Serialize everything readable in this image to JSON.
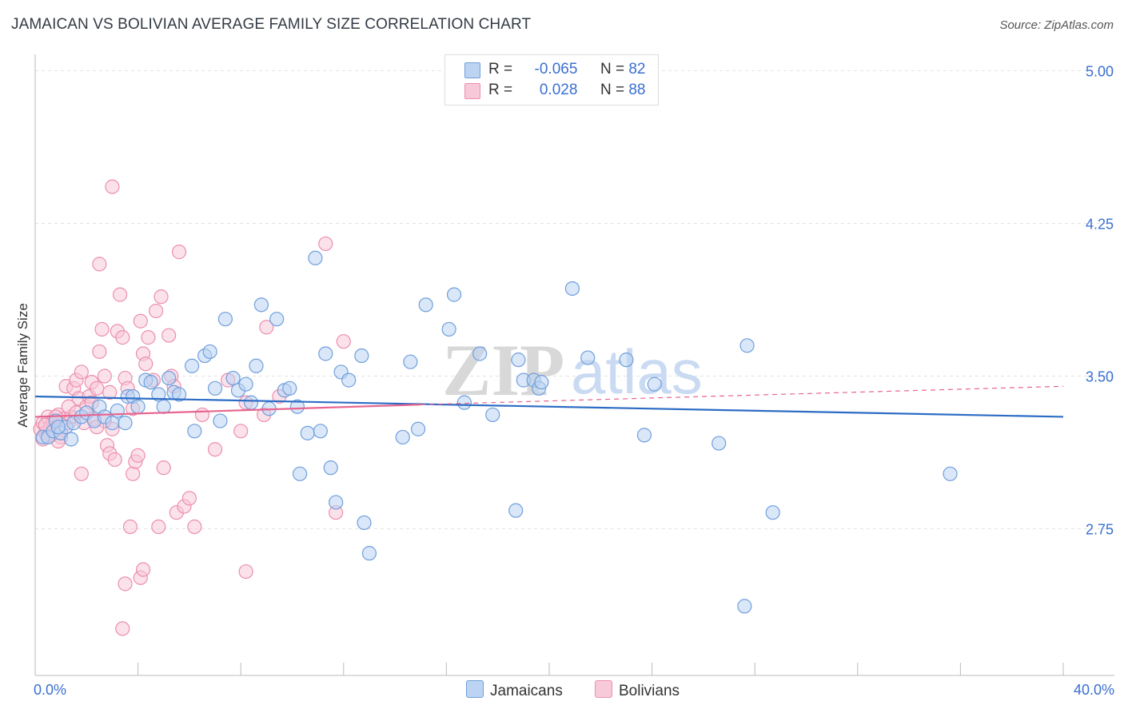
{
  "title": "JAMAICAN VS BOLIVIAN AVERAGE FAMILY SIZE CORRELATION CHART",
  "source": "Source: ZipAtlas.com",
  "watermark": {
    "zip": "ZIP",
    "atlas": "atlas"
  },
  "legend": {
    "rows": [
      {
        "r_label": "R =",
        "r_value": "-0.065",
        "n_label": "N =",
        "n_value": "82"
      },
      {
        "r_label": "R =",
        "r_value": "0.028",
        "n_label": "N =",
        "n_value": "88"
      }
    ]
  },
  "bottom_legend": {
    "jamaicans": "Jamaicans",
    "bolivians": "Bolivians"
  },
  "colors": {
    "blue_fill": "#bcd4f2",
    "blue_stroke": "#6f9fdc",
    "blue_line": "#2d6cc4",
    "pink_fill": "#f8c9d8",
    "pink_stroke": "#ec8fad",
    "pink_line": "#e8648e",
    "tick_text": "#3a6fd0",
    "grid": "#e2e2e2"
  },
  "chart_data": {
    "type": "scatter",
    "title": "JAMAICAN VS BOLIVIAN AVERAGE FAMILY SIZE CORRELATION CHART",
    "xlabel": "",
    "ylabel": "Average Family Size",
    "xlim": [
      0,
      40
    ],
    "ylim": [
      2.03,
      5.08
    ],
    "x_tick_labels": [
      "0.0%",
      "40.0%"
    ],
    "y_ticks": [
      2.75,
      3.5,
      4.25,
      5.0
    ],
    "y_tick_labels": [
      "2.75",
      "3.50",
      "4.25",
      "5.00"
    ],
    "series": [
      {
        "name": "Jamaicans",
        "r": -0.065,
        "n": 82,
        "trend": {
          "x": [
            0,
            40
          ],
          "y": [
            3.4,
            3.3
          ]
        },
        "points": [
          [
            0.3,
            3.2
          ],
          [
            0.5,
            3.2
          ],
          [
            0.7,
            3.23
          ],
          [
            0.8,
            3.28
          ],
          [
            1.0,
            3.22
          ],
          [
            1.2,
            3.25
          ],
          [
            1.5,
            3.27
          ],
          [
            1.8,
            3.3
          ],
          [
            2.0,
            3.32
          ],
          [
            2.3,
            3.28
          ],
          [
            2.5,
            3.35
          ],
          [
            2.7,
            3.3
          ],
          [
            3.0,
            3.27
          ],
          [
            3.2,
            3.33
          ],
          [
            3.5,
            3.27
          ],
          [
            3.6,
            3.4
          ],
          [
            3.8,
            3.4
          ],
          [
            4.0,
            3.35
          ],
          [
            4.3,
            3.48
          ],
          [
            4.5,
            3.47
          ],
          [
            4.8,
            3.41
          ],
          [
            5.0,
            3.35
          ],
          [
            5.2,
            3.49
          ],
          [
            5.4,
            3.42
          ],
          [
            5.6,
            3.41
          ],
          [
            6.2,
            3.23
          ],
          [
            6.1,
            3.55
          ],
          [
            6.6,
            3.6
          ],
          [
            6.8,
            3.62
          ],
          [
            7.0,
            3.44
          ],
          [
            7.2,
            3.28
          ],
          [
            7.4,
            3.78
          ],
          [
            7.7,
            3.49
          ],
          [
            7.9,
            3.43
          ],
          [
            8.2,
            3.46
          ],
          [
            8.4,
            3.37
          ],
          [
            8.6,
            3.55
          ],
          [
            8.8,
            3.85
          ],
          [
            9.1,
            3.34
          ],
          [
            9.4,
            3.78
          ],
          [
            9.7,
            3.43
          ],
          [
            9.9,
            3.44
          ],
          [
            10.2,
            3.35
          ],
          [
            10.6,
            3.22
          ],
          [
            10.9,
            4.08
          ],
          [
            11.1,
            3.23
          ],
          [
            11.3,
            3.61
          ],
          [
            11.5,
            3.05
          ],
          [
            11.7,
            2.88
          ],
          [
            11.9,
            3.52
          ],
          [
            12.2,
            3.48
          ],
          [
            12.7,
            3.6
          ],
          [
            13.0,
            2.63
          ],
          [
            10.3,
            3.02
          ],
          [
            12.8,
            2.78
          ],
          [
            14.3,
            3.2
          ],
          [
            14.6,
            3.57
          ],
          [
            14.9,
            3.24
          ],
          [
            15.2,
            3.85
          ],
          [
            16.1,
            3.73
          ],
          [
            16.3,
            3.9
          ],
          [
            16.7,
            3.37
          ],
          [
            17.3,
            3.61
          ],
          [
            17.8,
            3.31
          ],
          [
            18.7,
            2.84
          ],
          [
            18.8,
            3.58
          ],
          [
            19.0,
            3.48
          ],
          [
            19.4,
            3.48
          ],
          [
            19.6,
            3.44
          ],
          [
            19.7,
            3.47
          ],
          [
            20.9,
            3.93
          ],
          [
            21.5,
            3.59
          ],
          [
            23.0,
            3.58
          ],
          [
            23.7,
            3.21
          ],
          [
            24.1,
            3.46
          ],
          [
            26.6,
            3.17
          ],
          [
            27.7,
            3.65
          ],
          [
            27.6,
            2.37
          ],
          [
            28.7,
            2.83
          ],
          [
            35.6,
            3.02
          ],
          [
            0.9,
            3.25
          ],
          [
            1.4,
            3.19
          ]
        ]
      },
      {
        "name": "Bolivians",
        "r": 0.028,
        "n": 88,
        "trend": {
          "x": [
            0,
            15
          ],
          "y": [
            3.3,
            3.36
          ]
        },
        "trend_dashed": {
          "x": [
            15,
            40
          ],
          "y": [
            3.36,
            3.45
          ]
        },
        "points": [
          [
            0.2,
            3.24
          ],
          [
            0.3,
            3.27
          ],
          [
            0.4,
            3.22
          ],
          [
            0.5,
            3.3
          ],
          [
            0.6,
            3.25
          ],
          [
            0.7,
            3.28
          ],
          [
            0.8,
            3.24
          ],
          [
            0.9,
            3.31
          ],
          [
            1.0,
            3.2
          ],
          [
            1.1,
            3.29
          ],
          [
            1.2,
            3.45
          ],
          [
            1.3,
            3.27
          ],
          [
            1.4,
            3.3
          ],
          [
            1.5,
            3.44
          ],
          [
            1.6,
            3.48
          ],
          [
            1.7,
            3.39
          ],
          [
            1.8,
            3.52
          ],
          [
            1.9,
            3.27
          ],
          [
            2.0,
            3.35
          ],
          [
            2.1,
            3.4
          ],
          [
            2.2,
            3.47
          ],
          [
            2.3,
            3.29
          ],
          [
            2.4,
            3.44
          ],
          [
            2.5,
            3.62
          ],
          [
            2.6,
            3.73
          ],
          [
            2.7,
            3.5
          ],
          [
            2.8,
            3.16
          ],
          [
            2.9,
            3.12
          ],
          [
            3.0,
            3.24
          ],
          [
            3.1,
            3.09
          ],
          [
            3.2,
            3.72
          ],
          [
            3.3,
            3.9
          ],
          [
            3.4,
            3.69
          ],
          [
            3.5,
            3.49
          ],
          [
            3.6,
            3.44
          ],
          [
            3.7,
            2.76
          ],
          [
            3.8,
            3.02
          ],
          [
            3.9,
            3.08
          ],
          [
            4.0,
            3.11
          ],
          [
            4.1,
            3.77
          ],
          [
            4.2,
            3.61
          ],
          [
            4.3,
            3.56
          ],
          [
            4.4,
            3.69
          ],
          [
            4.6,
            3.48
          ],
          [
            4.7,
            3.82
          ],
          [
            4.8,
            2.76
          ],
          [
            4.9,
            3.89
          ],
          [
            5.0,
            3.05
          ],
          [
            5.2,
            3.7
          ],
          [
            5.3,
            3.5
          ],
          [
            5.5,
            2.83
          ],
          [
            5.6,
            4.11
          ],
          [
            5.8,
            2.86
          ],
          [
            6.0,
            2.9
          ],
          [
            6.2,
            2.76
          ],
          [
            6.5,
            3.31
          ],
          [
            7.0,
            3.14
          ],
          [
            7.5,
            3.48
          ],
          [
            8.0,
            3.23
          ],
          [
            8.2,
            3.37
          ],
          [
            8.9,
            3.31
          ],
          [
            9.0,
            3.74
          ],
          [
            9.5,
            3.4
          ],
          [
            11.3,
            4.15
          ],
          [
            11.7,
            2.83
          ],
          [
            12.0,
            3.67
          ],
          [
            3.0,
            4.43
          ],
          [
            2.5,
            4.05
          ],
          [
            1.8,
            3.02
          ],
          [
            3.4,
            2.26
          ],
          [
            3.5,
            2.48
          ],
          [
            4.1,
            2.51
          ],
          [
            4.2,
            2.55
          ],
          [
            8.2,
            2.54
          ],
          [
            2.2,
            3.37
          ],
          [
            1.3,
            3.35
          ],
          [
            0.9,
            3.18
          ],
          [
            0.6,
            3.21
          ],
          [
            0.4,
            3.26
          ],
          [
            1.6,
            3.32
          ],
          [
            2.7,
            3.28
          ],
          [
            2.4,
            3.25
          ],
          [
            1.0,
            3.22
          ],
          [
            0.3,
            3.19
          ],
          [
            3.8,
            3.34
          ],
          [
            2.9,
            3.42
          ],
          [
            5.4,
            3.45
          ],
          [
            0.8,
            3.3
          ]
        ]
      }
    ]
  }
}
